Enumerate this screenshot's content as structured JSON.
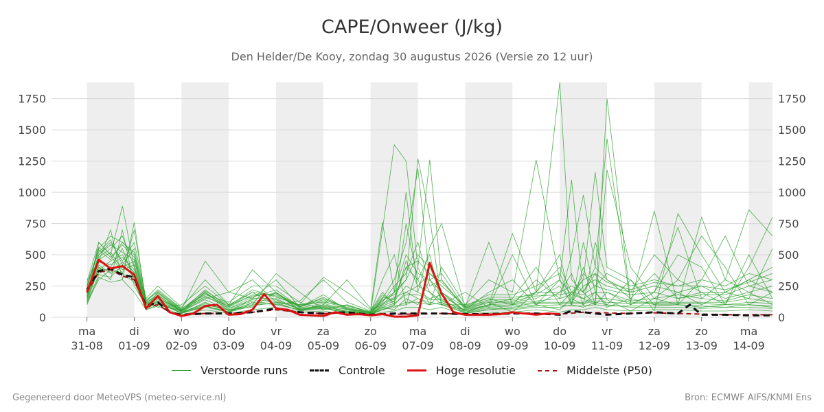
{
  "header": {
    "title": "CAPE/Onweer (J/kg)",
    "subtitle": "Den Helder/De Kooy, zondag 30 augustus 2026 (Versie zo 12 uur)"
  },
  "footer": {
    "left": "Gegenereerd door MeteoVPS (meteo-service.nl)",
    "right": "Bron: ECMWF AIFS/KNMI Ens"
  },
  "legend": [
    {
      "label": "Verstoorde runs",
      "color": "#2ca02c",
      "style": "thin-solid"
    },
    {
      "label": "Controle",
      "color": "#111111",
      "style": "dashed"
    },
    {
      "label": "Hoge resolutie",
      "color": "#dd1111",
      "style": "solid"
    },
    {
      "label": "Middelste (P50)",
      "color": "#aa1111",
      "style": "dashed"
    }
  ],
  "chart_data": {
    "type": "line",
    "title": "CAPE/Onweer (J/kg)",
    "subtitle": "Den Helder/De Kooy, zondag 30 augustus 2026 (Versie zo 12 uur)",
    "xlabel": "",
    "ylabel": "",
    "x_unit": "days from 31-08 00 UTC",
    "xlim": [
      -0.75,
      14.5
    ],
    "ylim": [
      0,
      1880
    ],
    "yticks": [
      0,
      250,
      500,
      750,
      1000,
      1250,
      1500,
      1750
    ],
    "y_axis_both_sides": true,
    "grid": "horizontal",
    "xtick_days": [
      "ma",
      "di",
      "wo",
      "do",
      "vr",
      "za",
      "zo",
      "ma",
      "di",
      "wo",
      "do",
      "vr",
      "za",
      "zo",
      "ma"
    ],
    "xtick_dates": [
      "31-08",
      "01-09",
      "02-09",
      "03-09",
      "04-09",
      "05-09",
      "06-09",
      "07-09",
      "08-09",
      "09-09",
      "10-09",
      "11-09",
      "12-09",
      "13-09",
      "14-09"
    ],
    "night_bands_color": "#eeeeee",
    "night_bands": [
      [
        0,
        1
      ],
      [
        2,
        3
      ],
      [
        4,
        5
      ],
      [
        6,
        7
      ],
      [
        8,
        9
      ],
      [
        10,
        11
      ],
      [
        12,
        13
      ],
      [
        14,
        14.5
      ]
    ],
    "legend_position": "bottom-center",
    "series": [
      {
        "name": "Hoge resolutie",
        "color": "#dd1111",
        "x": [
          0,
          0.25,
          0.5,
          0.75,
          1,
          1.25,
          1.5,
          1.75,
          2,
          2.25,
          2.5,
          2.75,
          3,
          3.25,
          3.5,
          3.75,
          4,
          4.25,
          4.5,
          4.75,
          5,
          5.25,
          5.5,
          5.75,
          6,
          6.25,
          6.5,
          6.75,
          7,
          7.25,
          7.5,
          7.75,
          8,
          8.25,
          8.5,
          8.75,
          9,
          9.25,
          9.5,
          9.75,
          10
        ],
        "values": [
          200,
          460,
          390,
          410,
          340,
          70,
          170,
          40,
          10,
          30,
          90,
          100,
          20,
          25,
          60,
          185,
          70,
          60,
          20,
          15,
          10,
          40,
          20,
          25,
          15,
          25,
          5,
          5,
          15,
          435,
          190,
          40,
          20,
          20,
          20,
          25,
          40,
          30,
          20,
          30,
          25
        ]
      },
      {
        "name": "Controle",
        "color": "#111111",
        "x": [
          0,
          0.25,
          0.5,
          0.75,
          1,
          1.25,
          1.5,
          1.75,
          2,
          2.5,
          3,
          3.5,
          4,
          4.5,
          5,
          5.5,
          6,
          6.5,
          7,
          7.5,
          8,
          8.5,
          9,
          9.5,
          10,
          10.25,
          10.5,
          10.75,
          11,
          11.5,
          12,
          12.5,
          12.75,
          13,
          13.5,
          14,
          14.5
        ],
        "values": [
          220,
          370,
          390,
          340,
          320,
          90,
          120,
          40,
          20,
          30,
          30,
          40,
          70,
          40,
          30,
          40,
          20,
          30,
          30,
          30,
          25,
          25,
          30,
          30,
          20,
          50,
          40,
          30,
          20,
          30,
          40,
          30,
          100,
          20,
          20,
          15,
          15
        ]
      },
      {
        "name": "Middelste (P50)",
        "color": "#aa1111",
        "x": [
          0,
          0.25,
          0.5,
          0.75,
          1,
          1.25,
          1.5,
          1.75,
          2,
          2.5,
          3,
          3.5,
          4,
          4.5,
          5,
          5.5,
          6,
          6.5,
          7,
          7.5,
          8,
          8.5,
          9,
          9.5,
          10,
          10.5,
          11,
          11.5,
          12,
          12.5,
          13,
          13.5,
          14,
          14.5
        ],
        "values": [
          200,
          360,
          380,
          330,
          300,
          80,
          100,
          40,
          20,
          30,
          30,
          40,
          60,
          40,
          30,
          35,
          20,
          25,
          25,
          30,
          25,
          25,
          30,
          30,
          25,
          40,
          35,
          30,
          35,
          30,
          25,
          20,
          20,
          20
        ]
      }
    ],
    "ensemble_members": {
      "name": "Verstoorde runs",
      "color": "#2ca02c",
      "count": 20,
      "x": [
        0,
        0.25,
        0.5,
        0.75,
        1,
        1.25,
        1.5,
        2,
        2.5,
        3,
        3.5,
        4,
        4.5,
        5,
        5.5,
        6,
        6.25,
        6.5,
        6.75,
        7,
        7.25,
        7.5,
        8,
        8.5,
        9,
        9.5,
        10,
        10.25,
        10.5,
        10.75,
        11,
        11.5,
        12,
        12.5,
        13,
        13.5,
        14,
        14.5
      ],
      "members": [
        [
          150,
          600,
          500,
          890,
          400,
          80,
          200,
          40,
          90,
          40,
          150,
          150,
          60,
          100,
          60,
          40,
          700,
          1380,
          1250,
          400,
          1260,
          300,
          60,
          120,
          40,
          200,
          1880,
          300,
          200,
          350,
          140,
          50,
          150,
          300,
          650,
          400,
          100,
          200
        ],
        [
          300,
          450,
          700,
          300,
          760,
          100,
          150,
          60,
          450,
          200,
          300,
          120,
          100,
          320,
          200,
          60,
          100,
          200,
          300,
          1270,
          800,
          100,
          200,
          80,
          500,
          100,
          300,
          1100,
          200,
          100,
          1750,
          120,
          850,
          100,
          800,
          300,
          860,
          650
        ],
        [
          250,
          550,
          650,
          600,
          500,
          120,
          80,
          100,
          250,
          100,
          380,
          200,
          60,
          100,
          300,
          70,
          760,
          200,
          1000,
          200,
          560,
          750,
          80,
          600,
          100,
          300,
          150,
          500,
          980,
          400,
          1430,
          100,
          200,
          500,
          400,
          100,
          400,
          800
        ],
        [
          120,
          400,
          300,
          700,
          250,
          90,
          120,
          30,
          200,
          50,
          100,
          350,
          200,
          60,
          100,
          30,
          150,
          300,
          600,
          1190,
          300,
          200,
          50,
          100,
          670,
          200,
          400,
          200,
          300,
          1160,
          400,
          300,
          50,
          830,
          500,
          200,
          150,
          550
        ],
        [
          180,
          500,
          600,
          450,
          600,
          150,
          250,
          80,
          300,
          100,
          200,
          100,
          130,
          300,
          120,
          50,
          200,
          100,
          750,
          300,
          100,
          400,
          100,
          300,
          200,
          1260,
          300,
          100,
          400,
          100,
          1180,
          400,
          150,
          100,
          300,
          650,
          250,
          300
        ],
        [
          220,
          350,
          400,
          550,
          300,
          60,
          100,
          50,
          150,
          200,
          150,
          300,
          80,
          180,
          60,
          20,
          100,
          150,
          400,
          300,
          500,
          100,
          60,
          200,
          300,
          100,
          200,
          350,
          100,
          600,
          300,
          200,
          500,
          300,
          200,
          100,
          500,
          150
        ],
        [
          160,
          420,
          350,
          400,
          450,
          100,
          180,
          40,
          100,
          60,
          80,
          200,
          50,
          100,
          40,
          30,
          60,
          100,
          200,
          150,
          100,
          200,
          40,
          100,
          150,
          400,
          100,
          200,
          150,
          100,
          200,
          100,
          200,
          720,
          150,
          300,
          200,
          100
        ],
        [
          280,
          600,
          500,
          350,
          700,
          130,
          220,
          70,
          180,
          120,
          250,
          250,
          120,
          60,
          100,
          40,
          300,
          500,
          100,
          400,
          200,
          100,
          100,
          150,
          100,
          200,
          500,
          100,
          600,
          200,
          100,
          300,
          100,
          200,
          100,
          200,
          300,
          200
        ],
        [
          140,
          380,
          450,
          500,
          350,
          80,
          130,
          30,
          120,
          40,
          120,
          100,
          60,
          80,
          30,
          25,
          80,
          60,
          150,
          100,
          300,
          150,
          30,
          60,
          80,
          100,
          60,
          150,
          100,
          200,
          80,
          150,
          100,
          100,
          80,
          100,
          100,
          80
        ],
        [
          200,
          480,
          550,
          650,
          400,
          110,
          160,
          50,
          220,
          80,
          180,
          180,
          90,
          140,
          80,
          35,
          120,
          250,
          350,
          600,
          250,
          300,
          70,
          120,
          120,
          150,
          250,
          120,
          250,
          300,
          250,
          200,
          250,
          200,
          250,
          150,
          200,
          250
        ],
        [
          100,
          320,
          280,
          300,
          200,
          60,
          90,
          20,
          60,
          30,
          60,
          80,
          40,
          50,
          20,
          15,
          40,
          50,
          80,
          80,
          60,
          80,
          20,
          40,
          40,
          60,
          40,
          60,
          60,
          80,
          60,
          50,
          60,
          60,
          50,
          50,
          60,
          50
        ],
        [
          260,
          520,
          620,
          420,
          550,
          140,
          200,
          60,
          160,
          90,
          220,
          160,
          100,
          120,
          90,
          45,
          180,
          120,
          450,
          250,
          350,
          250,
          90,
          180,
          180,
          250,
          350,
          150,
          350,
          250,
          350,
          250,
          300,
          250,
          300,
          250,
          350,
          300
        ],
        [
          130,
          300,
          380,
          350,
          280,
          70,
          110,
          35,
          80,
          40,
          90,
          120,
          50,
          70,
          35,
          20,
          60,
          80,
          120,
          120,
          100,
          120,
          30,
          60,
          60,
          80,
          80,
          100,
          80,
          120,
          100,
          80,
          80,
          80,
          70,
          80,
          80,
          70
        ],
        [
          240,
          560,
          480,
          580,
          480,
          120,
          170,
          55,
          200,
          70,
          160,
          220,
          80,
          160,
          70,
          35,
          140,
          180,
          300,
          500,
          400,
          200,
          80,
          140,
          140,
          200,
          200,
          250,
          200,
          400,
          300,
          150,
          350,
          150,
          200,
          200,
          300,
          400
        ],
        [
          170,
          440,
          420,
          480,
          380,
          90,
          140,
          45,
          140,
          60,
          130,
          140,
          70,
          90,
          50,
          30,
          90,
          130,
          250,
          200,
          150,
          180,
          50,
          90,
          100,
          120,
          120,
          120,
          120,
          150,
          150,
          120,
          120,
          120,
          120,
          120,
          150,
          120
        ],
        [
          190,
          460,
          520,
          380,
          420,
          100,
          150,
          50,
          170,
          70,
          140,
          200,
          75,
          110,
          60,
          30,
          110,
          160,
          200,
          250,
          200,
          130,
          60,
          100,
          110,
          130,
          150,
          180,
          150,
          200,
          200,
          130,
          150,
          180,
          150,
          130,
          180,
          150
        ],
        [
          110,
          340,
          320,
          420,
          320,
          75,
          120,
          30,
          90,
          45,
          100,
          110,
          55,
          75,
          40,
          20,
          70,
          90,
          100,
          150,
          120,
          100,
          35,
          70,
          70,
          90,
          100,
          90,
          90,
          100,
          90,
          90,
          90,
          100,
          90,
          80,
          100,
          90
        ],
        [
          210,
          500,
          580,
          520,
          460,
          115,
          190,
          55,
          190,
          85,
          200,
          170,
          85,
          130,
          65,
          35,
          130,
          200,
          500,
          350,
          300,
          350,
          75,
          130,
          130,
          170,
          180,
          200,
          180,
          250,
          220,
          180,
          200,
          150,
          180,
          180,
          250,
          200
        ],
        [
          150,
          400,
          360,
          440,
          360,
          85,
          130,
          40,
          110,
          55,
          110,
          130,
          65,
          85,
          45,
          25,
          80,
          110,
          180,
          180,
          140,
          140,
          40,
          80,
          90,
          110,
          110,
          110,
          110,
          130,
          120,
          110,
          110,
          110,
          110,
          100,
          120,
          110
        ],
        [
          230,
          540,
          460,
          600,
          520,
          125,
          210,
          65,
          210,
          95,
          170,
          190,
          95,
          150,
          75,
          40,
          160,
          140,
          400,
          450,
          350,
          280,
          85,
          160,
          160,
          180,
          300,
          180,
          300,
          350,
          280,
          220,
          280,
          250,
          250,
          220,
          280,
          350
        ]
      ]
    }
  }
}
